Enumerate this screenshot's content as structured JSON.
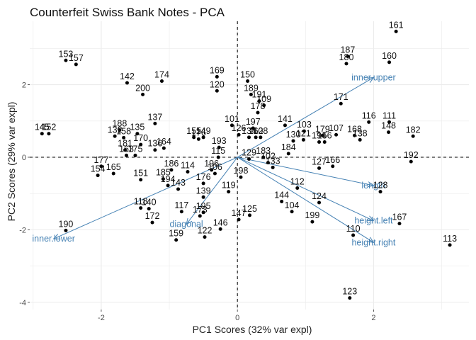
{
  "chart_data": {
    "type": "scatter",
    "title": "Counterfeit Swiss Bank Notes - PCA",
    "xlabel": "PC1 Scores (32% var expl)",
    "ylabel": "PC2 Scores (29% var expl)",
    "xlim": [
      -3.05,
      3.4
    ],
    "ylim": [
      -4.2,
      3.75
    ],
    "x_ticks": [
      -2,
      0,
      2
    ],
    "x_tick_labels": [
      "-2",
      "0",
      "2"
    ],
    "y_ticks": [
      -4,
      -2,
      0,
      2
    ],
    "y_tick_labels": [
      "-4",
      "-2",
      "0",
      "2"
    ],
    "grid": true,
    "reference_lines": {
      "x": 0,
      "y": 0,
      "style": "dashed"
    },
    "colors": {
      "points": "#000000",
      "arrows": "#4682b4",
      "labels": "#4682b4",
      "grid": "#ebebeb"
    },
    "points": [
      {
        "label": "161",
        "x": 2.33,
        "y": 3.47
      },
      {
        "label": "153",
        "x": -2.52,
        "y": 2.67
      },
      {
        "label": "157",
        "x": -2.37,
        "y": 2.56
      },
      {
        "label": "187",
        "x": 1.62,
        "y": 2.78
      },
      {
        "label": "180",
        "x": 1.6,
        "y": 2.58
      },
      {
        "label": "160",
        "x": 2.23,
        "y": 2.62
      },
      {
        "label": "142",
        "x": -1.62,
        "y": 2.05
      },
      {
        "label": "174",
        "x": -1.11,
        "y": 2.1
      },
      {
        "label": "200",
        "x": -1.39,
        "y": 1.73
      },
      {
        "label": "169",
        "x": -0.3,
        "y": 2.22
      },
      {
        "label": "120",
        "x": -0.3,
        "y": 1.83
      },
      {
        "label": "150",
        "x": 0.15,
        "y": 2.1
      },
      {
        "label": "189",
        "x": 0.2,
        "y": 1.73
      },
      {
        "label": "191",
        "x": 0.32,
        "y": 1.55
      },
      {
        "label": "109",
        "x": 0.39,
        "y": 1.43
      },
      {
        "label": "178",
        "x": 0.3,
        "y": 1.23
      },
      {
        "label": "171",
        "x": 1.52,
        "y": 1.48
      },
      {
        "label": "116",
        "x": 1.93,
        "y": 0.97
      },
      {
        "label": "111",
        "x": 2.23,
        "y": 0.97
      },
      {
        "label": "148",
        "x": 2.22,
        "y": 0.69
      },
      {
        "label": "182",
        "x": 2.58,
        "y": 0.58
      },
      {
        "label": "192",
        "x": 2.55,
        "y": -0.12
      },
      {
        "label": "145",
        "x": -2.87,
        "y": 0.65
      },
      {
        "label": "152",
        "x": -2.77,
        "y": 0.65
      },
      {
        "label": "188",
        "x": -1.73,
        "y": 0.75
      },
      {
        "label": "132",
        "x": -1.8,
        "y": 0.58
      },
      {
        "label": "158",
        "x": -1.67,
        "y": 0.54
      },
      {
        "label": "135",
        "x": -1.47,
        "y": 0.65
      },
      {
        "label": "137",
        "x": -1.21,
        "y": 0.93
      },
      {
        "label": "170",
        "x": -1.42,
        "y": 0.35
      },
      {
        "label": "175",
        "x": -1.5,
        "y": 0.05
      },
      {
        "label": "181",
        "x": -1.65,
        "y": 0.2
      },
      {
        "label": "163",
        "x": -1.63,
        "y": 0.05
      },
      {
        "label": "177",
        "x": -2.0,
        "y": -0.25
      },
      {
        "label": "154",
        "x": -2.05,
        "y": -0.5
      },
      {
        "label": "165",
        "x": -1.82,
        "y": -0.45
      },
      {
        "label": "136",
        "x": -1.21,
        "y": 0.2
      },
      {
        "label": "164",
        "x": -1.08,
        "y": 0.25
      },
      {
        "label": "151",
        "x": -1.42,
        "y": -0.62
      },
      {
        "label": "186",
        "x": -0.97,
        "y": -0.35
      },
      {
        "label": "114",
        "x": -0.73,
        "y": -0.4
      },
      {
        "label": "185",
        "x": -1.09,
        "y": -0.6
      },
      {
        "label": "194",
        "x": -1.02,
        "y": -0.78
      },
      {
        "label": "143",
        "x": -0.87,
        "y": -0.88
      },
      {
        "label": "155",
        "x": -0.64,
        "y": 0.55
      },
      {
        "label": "176",
        "x": -0.57,
        "y": 0.5
      },
      {
        "label": "149",
        "x": -0.5,
        "y": 0.55
      },
      {
        "label": "193",
        "x": -0.27,
        "y": 0.27
      },
      {
        "label": "115",
        "x": -0.28,
        "y": 0.0
      },
      {
        "label": "196",
        "x": -0.38,
        "y": -0.35
      },
      {
        "label": "106",
        "x": -0.33,
        "y": -0.45
      },
      {
        "label": "176",
        "x": -0.5,
        "y": -0.72
      },
      {
        "label": "139",
        "x": -0.5,
        "y": -1.1
      },
      {
        "label": "119",
        "x": -0.13,
        "y": -0.95
      },
      {
        "label": "198",
        "x": 0.05,
        "y": -0.55
      },
      {
        "label": "101",
        "x": -0.08,
        "y": 0.88
      },
      {
        "label": "197",
        "x": 0.23,
        "y": 0.8
      },
      {
        "label": "126",
        "x": 0.02,
        "y": 0.62
      },
      {
        "label": "134",
        "x": 0.17,
        "y": 0.55
      },
      {
        "label": "162",
        "x": 0.27,
        "y": 0.55
      },
      {
        "label": "108",
        "x": 0.34,
        "y": 0.55
      },
      {
        "label": "129",
        "x": 0.17,
        "y": -0.05
      },
      {
        "label": "183",
        "x": 0.38,
        "y": 0.0
      },
      {
        "label": "102",
        "x": 0.45,
        "y": -0.15
      },
      {
        "label": "133",
        "x": 0.52,
        "y": -0.28
      },
      {
        "label": "141",
        "x": 0.7,
        "y": 0.88
      },
      {
        "label": "103",
        "x": 0.98,
        "y": 0.72
      },
      {
        "label": "130",
        "x": 0.82,
        "y": 0.45
      },
      {
        "label": "121",
        "x": 0.97,
        "y": 0.48
      },
      {
        "label": "184",
        "x": 0.75,
        "y": 0.1
      },
      {
        "label": "179",
        "x": 1.25,
        "y": 0.6
      },
      {
        "label": "107",
        "x": 1.45,
        "y": 0.62
      },
      {
        "label": "168",
        "x": 1.72,
        "y": 0.6
      },
      {
        "label": "138",
        "x": 1.8,
        "y": 0.48
      },
      {
        "label": "194",
        "x": 1.2,
        "y": 0.42
      },
      {
        "label": "156",
        "x": 1.28,
        "y": 0.42
      },
      {
        "label": "127",
        "x": 1.2,
        "y": -0.3
      },
      {
        "label": "166",
        "x": 1.4,
        "y": -0.25
      },
      {
        "label": "112",
        "x": 0.88,
        "y": -0.85
      },
      {
        "label": "144",
        "x": 0.65,
        "y": -1.22
      },
      {
        "label": "104",
        "x": 0.8,
        "y": -1.5
      },
      {
        "label": "124",
        "x": 1.2,
        "y": -1.25
      },
      {
        "label": "199",
        "x": 1.1,
        "y": -1.78
      },
      {
        "label": "128",
        "x": 2.1,
        "y": -0.95
      },
      {
        "label": "167",
        "x": 2.38,
        "y": -1.83
      },
      {
        "label": "110",
        "x": 1.7,
        "y": -2.15
      },
      {
        "label": "113",
        "x": 3.12,
        "y": -2.42
      },
      {
        "label": "123",
        "x": 1.65,
        "y": -3.88
      },
      {
        "label": "118",
        "x": -1.42,
        "y": -1.4
      },
      {
        "label": "140",
        "x": -1.3,
        "y": -1.42
      },
      {
        "label": "172",
        "x": -1.25,
        "y": -1.8
      },
      {
        "label": "117",
        "x": -0.82,
        "y": -1.5
      },
      {
        "label": "173",
        "x": -0.55,
        "y": -1.62
      },
      {
        "label": "195",
        "x": -0.5,
        "y": -1.52
      },
      {
        "label": "159",
        "x": -0.9,
        "y": -2.28
      },
      {
        "label": "122",
        "x": -0.48,
        "y": -2.2
      },
      {
        "label": "146",
        "x": -0.25,
        "y": -1.98
      },
      {
        "label": "147",
        "x": 0.02,
        "y": -1.72
      },
      {
        "label": "125",
        "x": 0.18,
        "y": -1.6
      },
      {
        "label": "190",
        "x": -2.52,
        "y": -2.02
      }
    ],
    "loadings": [
      {
        "label": "inner.upper",
        "x": 2.0,
        "y": 2.2
      },
      {
        "label": "length",
        "x": 2.0,
        "y": -0.78
      },
      {
        "label": "height.left",
        "x": 2.0,
        "y": -1.75
      },
      {
        "label": "height.right",
        "x": 2.0,
        "y": -2.35
      },
      {
        "label": "diagonal",
        "x": -0.75,
        "y": -1.85
      },
      {
        "label": "inner.lower",
        "x": -2.7,
        "y": -2.25
      }
    ]
  }
}
